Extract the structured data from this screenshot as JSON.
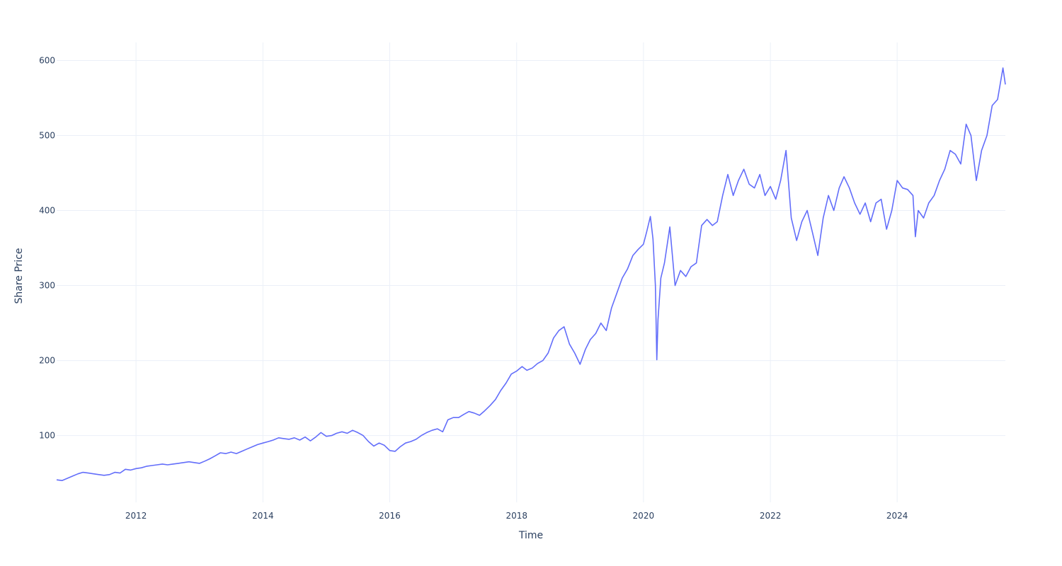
{
  "chart_data": {
    "type": "line",
    "title": "",
    "xlabel": "Time",
    "ylabel": "Share Price",
    "grid": true,
    "legend": "none",
    "x_range": [
      "2010-10-01",
      "2025-09-15"
    ],
    "ylim": [
      11,
      624
    ],
    "x_ticks": [
      {
        "value": "2012-01-01",
        "label": "2012"
      },
      {
        "value": "2014-01-01",
        "label": "2014"
      },
      {
        "value": "2016-01-01",
        "label": "2016"
      },
      {
        "value": "2018-01-01",
        "label": "2018"
      },
      {
        "value": "2020-01-01",
        "label": "2020"
      },
      {
        "value": "2022-01-01",
        "label": "2022"
      },
      {
        "value": "2024-01-01",
        "label": "2024"
      }
    ],
    "y_ticks": [
      {
        "value": 100,
        "label": "100"
      },
      {
        "value": 200,
        "label": "200"
      },
      {
        "value": 300,
        "label": "300"
      },
      {
        "value": 400,
        "label": "400"
      },
      {
        "value": 500,
        "label": "500"
      },
      {
        "value": 600,
        "label": "600"
      }
    ],
    "series": [
      {
        "color": "#636efa",
        "points": [
          [
            "2010-10-01",
            41
          ],
          [
            "2010-11-01",
            40
          ],
          [
            "2010-12-01",
            43
          ],
          [
            "2011-01-01",
            46
          ],
          [
            "2011-02-01",
            49
          ],
          [
            "2011-03-01",
            51
          ],
          [
            "2011-04-01",
            50
          ],
          [
            "2011-05-01",
            49
          ],
          [
            "2011-06-01",
            48
          ],
          [
            "2011-07-01",
            47
          ],
          [
            "2011-08-01",
            48
          ],
          [
            "2011-09-01",
            51
          ],
          [
            "2011-10-01",
            50
          ],
          [
            "2011-11-01",
            55
          ],
          [
            "2011-12-01",
            54
          ],
          [
            "2012-01-01",
            56
          ],
          [
            "2012-02-01",
            57
          ],
          [
            "2012-03-01",
            59
          ],
          [
            "2012-04-01",
            60
          ],
          [
            "2012-05-01",
            61
          ],
          [
            "2012-06-01",
            62
          ],
          [
            "2012-07-01",
            61
          ],
          [
            "2012-08-01",
            62
          ],
          [
            "2012-09-01",
            63
          ],
          [
            "2012-10-01",
            64
          ],
          [
            "2012-11-01",
            65
          ],
          [
            "2012-12-01",
            64
          ],
          [
            "2013-01-01",
            63
          ],
          [
            "2013-02-01",
            66
          ],
          [
            "2013-03-01",
            69
          ],
          [
            "2013-04-01",
            73
          ],
          [
            "2013-05-01",
            77
          ],
          [
            "2013-06-01",
            76
          ],
          [
            "2013-07-01",
            78
          ],
          [
            "2013-08-01",
            76
          ],
          [
            "2013-09-01",
            79
          ],
          [
            "2013-10-01",
            82
          ],
          [
            "2013-11-01",
            85
          ],
          [
            "2013-12-01",
            88
          ],
          [
            "2014-01-01",
            90
          ],
          [
            "2014-02-01",
            92
          ],
          [
            "2014-03-01",
            94
          ],
          [
            "2014-04-01",
            97
          ],
          [
            "2014-05-01",
            96
          ],
          [
            "2014-06-01",
            95
          ],
          [
            "2014-07-01",
            97
          ],
          [
            "2014-08-01",
            94
          ],
          [
            "2014-09-01",
            98
          ],
          [
            "2014-10-01",
            93
          ],
          [
            "2014-11-01",
            98
          ],
          [
            "2014-12-01",
            104
          ],
          [
            "2015-01-01",
            99
          ],
          [
            "2015-02-01",
            100
          ],
          [
            "2015-03-01",
            103
          ],
          [
            "2015-04-01",
            105
          ],
          [
            "2015-05-01",
            103
          ],
          [
            "2015-06-01",
            107
          ],
          [
            "2015-07-01",
            104
          ],
          [
            "2015-08-01",
            100
          ],
          [
            "2015-09-01",
            92
          ],
          [
            "2015-10-01",
            86
          ],
          [
            "2015-11-01",
            90
          ],
          [
            "2015-12-01",
            87
          ],
          [
            "2016-01-01",
            80
          ],
          [
            "2016-02-01",
            79
          ],
          [
            "2016-03-01",
            85
          ],
          [
            "2016-04-01",
            90
          ],
          [
            "2016-05-01",
            92
          ],
          [
            "2016-06-01",
            95
          ],
          [
            "2016-07-01",
            100
          ],
          [
            "2016-08-01",
            104
          ],
          [
            "2016-09-01",
            107
          ],
          [
            "2016-10-01",
            109
          ],
          [
            "2016-11-01",
            105
          ],
          [
            "2016-12-01",
            121
          ],
          [
            "2017-01-01",
            124
          ],
          [
            "2017-02-01",
            124
          ],
          [
            "2017-03-01",
            128
          ],
          [
            "2017-04-01",
            132
          ],
          [
            "2017-05-01",
            130
          ],
          [
            "2017-06-01",
            127
          ],
          [
            "2017-07-01",
            133
          ],
          [
            "2017-08-01",
            140
          ],
          [
            "2017-09-01",
            148
          ],
          [
            "2017-10-01",
            160
          ],
          [
            "2017-11-01",
            170
          ],
          [
            "2017-12-01",
            182
          ],
          [
            "2018-01-01",
            186
          ],
          [
            "2018-02-01",
            192
          ],
          [
            "2018-03-01",
            187
          ],
          [
            "2018-04-01",
            190
          ],
          [
            "2018-05-01",
            196
          ],
          [
            "2018-06-01",
            200
          ],
          [
            "2018-07-01",
            210
          ],
          [
            "2018-08-01",
            230
          ],
          [
            "2018-09-01",
            240
          ],
          [
            "2018-10-01",
            245
          ],
          [
            "2018-11-01",
            222
          ],
          [
            "2018-12-01",
            210
          ],
          [
            "2019-01-01",
            195
          ],
          [
            "2019-02-01",
            215
          ],
          [
            "2019-03-01",
            228
          ],
          [
            "2019-04-01",
            236
          ],
          [
            "2019-05-01",
            250
          ],
          [
            "2019-06-01",
            240
          ],
          [
            "2019-07-01",
            270
          ],
          [
            "2019-08-01",
            290
          ],
          [
            "2019-09-01",
            310
          ],
          [
            "2019-10-01",
            322
          ],
          [
            "2019-11-01",
            340
          ],
          [
            "2019-12-01",
            348
          ],
          [
            "2020-01-01",
            355
          ],
          [
            "2020-01-20",
            372
          ],
          [
            "2020-02-10",
            392
          ],
          [
            "2020-02-25",
            362
          ],
          [
            "2020-03-10",
            300
          ],
          [
            "2020-03-18",
            201
          ],
          [
            "2020-03-25",
            255
          ],
          [
            "2020-04-10",
            310
          ],
          [
            "2020-05-01",
            330
          ],
          [
            "2020-06-01",
            378
          ],
          [
            "2020-07-01",
            300
          ],
          [
            "2020-08-01",
            320
          ],
          [
            "2020-09-01",
            312
          ],
          [
            "2020-10-01",
            325
          ],
          [
            "2020-11-01",
            330
          ],
          [
            "2020-12-01",
            380
          ],
          [
            "2021-01-01",
            388
          ],
          [
            "2021-02-01",
            380
          ],
          [
            "2021-03-01",
            385
          ],
          [
            "2021-04-01",
            420
          ],
          [
            "2021-05-01",
            448
          ],
          [
            "2021-06-01",
            420
          ],
          [
            "2021-07-01",
            440
          ],
          [
            "2021-08-01",
            455
          ],
          [
            "2021-09-01",
            435
          ],
          [
            "2021-10-01",
            430
          ],
          [
            "2021-11-01",
            448
          ],
          [
            "2021-12-01",
            420
          ],
          [
            "2022-01-01",
            432
          ],
          [
            "2022-02-01",
            415
          ],
          [
            "2022-03-01",
            440
          ],
          [
            "2022-04-01",
            480
          ],
          [
            "2022-05-01",
            390
          ],
          [
            "2022-06-01",
            360
          ],
          [
            "2022-07-01",
            385
          ],
          [
            "2022-08-01",
            400
          ],
          [
            "2022-09-01",
            370
          ],
          [
            "2022-10-01",
            340
          ],
          [
            "2022-11-01",
            390
          ],
          [
            "2022-12-01",
            420
          ],
          [
            "2023-01-01",
            400
          ],
          [
            "2023-02-01",
            430
          ],
          [
            "2023-03-01",
            445
          ],
          [
            "2023-04-01",
            430
          ],
          [
            "2023-05-01",
            410
          ],
          [
            "2023-06-01",
            395
          ],
          [
            "2023-07-01",
            410
          ],
          [
            "2023-08-01",
            385
          ],
          [
            "2023-09-01",
            410
          ],
          [
            "2023-10-01",
            415
          ],
          [
            "2023-11-01",
            375
          ],
          [
            "2023-12-01",
            400
          ],
          [
            "2024-01-01",
            440
          ],
          [
            "2024-02-01",
            430
          ],
          [
            "2024-03-01",
            428
          ],
          [
            "2024-04-01",
            420
          ],
          [
            "2024-04-15",
            365
          ],
          [
            "2024-05-01",
            400
          ],
          [
            "2024-06-01",
            390
          ],
          [
            "2024-07-01",
            410
          ],
          [
            "2024-08-01",
            420
          ],
          [
            "2024-09-01",
            440
          ],
          [
            "2024-10-01",
            455
          ],
          [
            "2024-11-01",
            480
          ],
          [
            "2024-12-01",
            475
          ],
          [
            "2025-01-01",
            462
          ],
          [
            "2025-02-01",
            515
          ],
          [
            "2025-03-01",
            500
          ],
          [
            "2025-04-01",
            440
          ],
          [
            "2025-05-01",
            480
          ],
          [
            "2025-06-01",
            500
          ],
          [
            "2025-07-01",
            540
          ],
          [
            "2025-08-01",
            548
          ],
          [
            "2025-09-01",
            590
          ],
          [
            "2025-09-15",
            568
          ]
        ]
      }
    ]
  }
}
